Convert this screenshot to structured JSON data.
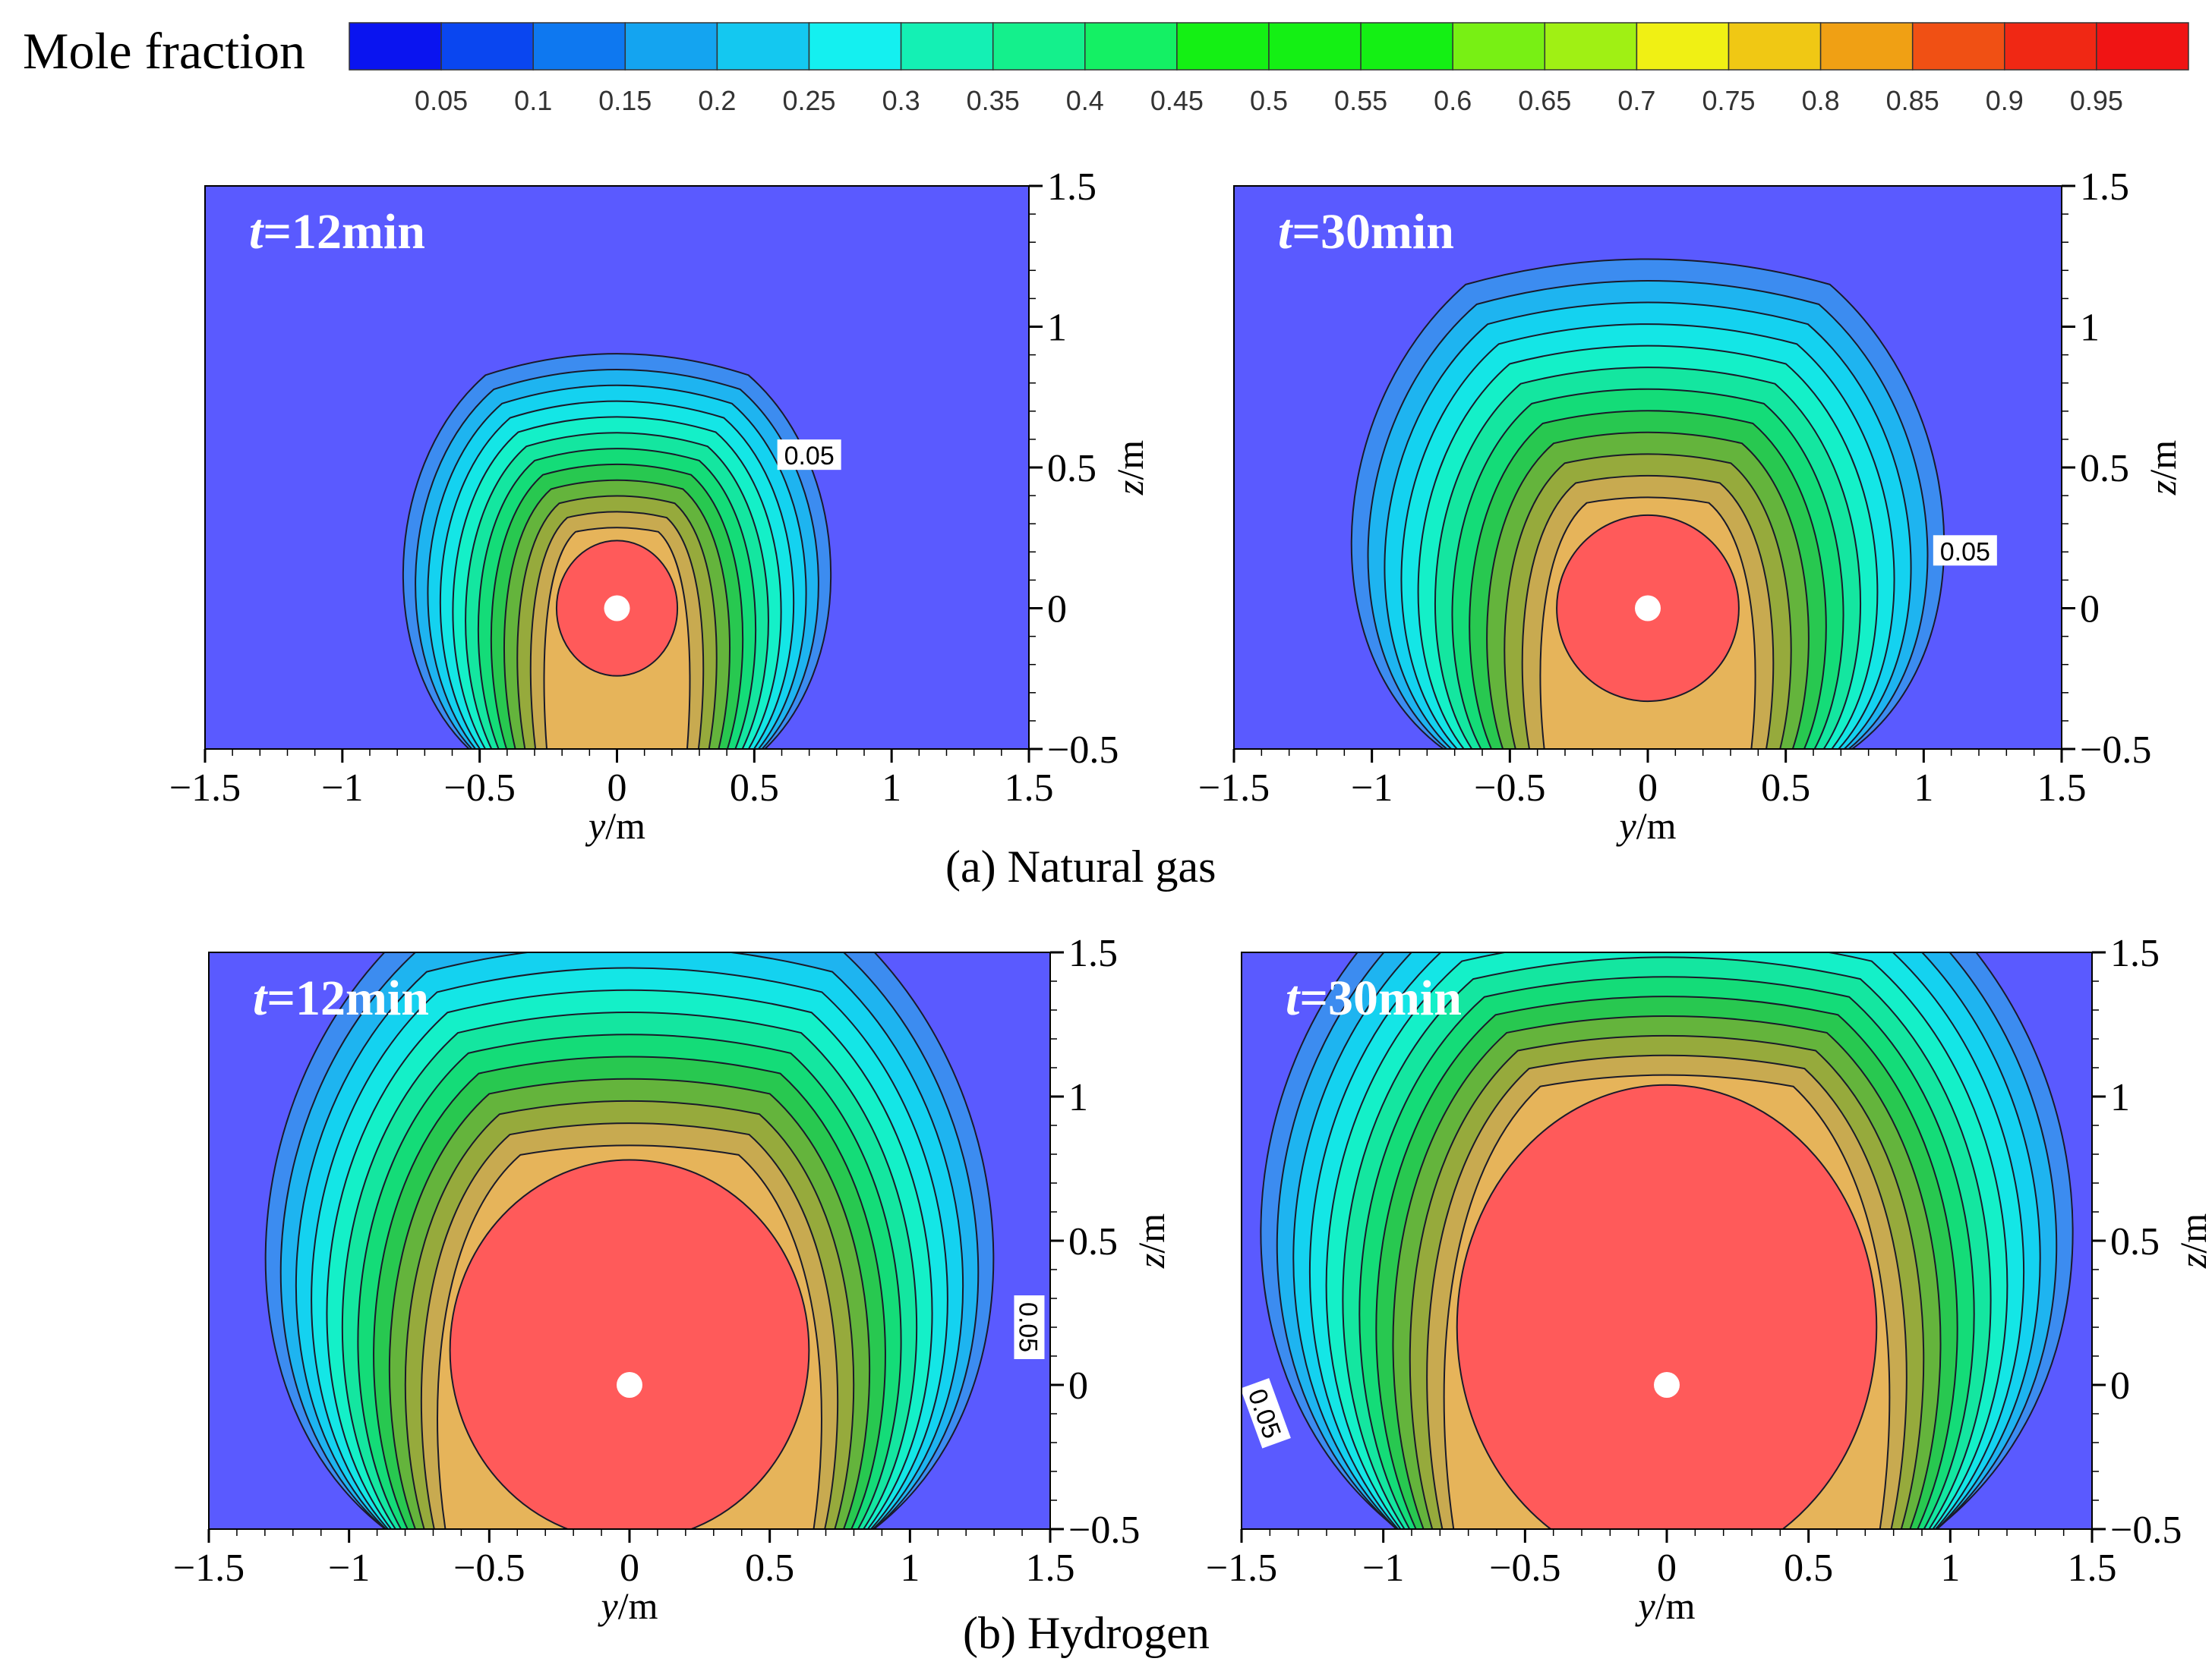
{
  "chart_data": [
    {
      "type": "heatmap",
      "group": "(a) Natural gas",
      "title": "t=12min",
      "title_var": "t",
      "title_rest": "=12min",
      "xlabel_var": "y",
      "xlabel_unit": "/m",
      "ylabel_var": "z",
      "ylabel_unit": "/m",
      "xlim": [
        -1.5,
        1.5
      ],
      "ylim": [
        -0.5,
        1.5
      ],
      "xticks": [
        "−1.5",
        "−1",
        "−0.5",
        "0",
        "0.5",
        "1",
        "1.5"
      ],
      "yticks": [
        "−0.5",
        "0",
        "0.5",
        "1",
        "1.5"
      ],
      "source": [
        0,
        0
      ],
      "core_radius_y": 0.22,
      "core_radius_z": 0.24,
      "core_center_z": 0.0,
      "outer_extent_y": 0.87,
      "outer_top_z": 0.9,
      "contour_tags": [
        {
          "text": "0.05",
          "y": 0.7,
          "z": 0.54,
          "rotate": 0
        }
      ]
    },
    {
      "type": "heatmap",
      "group": "(a) Natural gas",
      "title": "t=30min",
      "title_var": "t",
      "title_rest": "=30min",
      "xlabel_var": "y",
      "xlabel_unit": "/m",
      "ylabel_var": "z",
      "ylabel_unit": "/m",
      "xlim": [
        -1.5,
        1.5
      ],
      "ylim": [
        -0.5,
        1.5
      ],
      "xticks": [
        "−1.5",
        "−1",
        "−0.5",
        "0",
        "0.5",
        "1",
        "1.5"
      ],
      "yticks": [
        "−0.5",
        "0",
        "0.5",
        "1",
        "1.5"
      ],
      "source": [
        0,
        0
      ],
      "core_radius_y": 0.33,
      "core_radius_z": 0.33,
      "core_center_z": 0.0,
      "outer_extent_y": 1.2,
      "outer_top_z": 1.25,
      "contour_tags": [
        {
          "text": "0.05",
          "y": 1.15,
          "z": 0.2,
          "rotate": 0
        }
      ]
    },
    {
      "type": "heatmap",
      "group": "(b) Hydrogen",
      "title": "t=12min",
      "title_var": "t",
      "title_rest": "=12min",
      "xlabel_var": "y",
      "xlabel_unit": "/m",
      "ylabel_var": "z",
      "ylabel_unit": "/m",
      "xlim": [
        -1.5,
        1.5
      ],
      "ylim": [
        -0.5,
        1.5
      ],
      "xticks": [
        "−1.5",
        "−1",
        "−0.5",
        "0",
        "0.5",
        "1",
        "1.5"
      ],
      "yticks": [
        "−0.5",
        "0",
        "0.5",
        "1",
        "1.5"
      ],
      "source": [
        0,
        0
      ],
      "core_radius_y": 0.64,
      "core_radius_z": 0.66,
      "core_center_z": 0.12,
      "outer_extent_y": 1.45,
      "outer_top_z": 1.7,
      "contour_tags": [
        {
          "text": "0.05",
          "y": 1.42,
          "z": 0.2,
          "rotate": 90
        }
      ]
    },
    {
      "type": "heatmap",
      "group": "(b) Hydrogen",
      "title": "t=30min",
      "title_var": "t",
      "title_rest": "=30min",
      "xlabel_var": "y",
      "xlabel_unit": "/m",
      "ylabel_var": "z",
      "ylabel_unit": "/m",
      "xlim": [
        -1.5,
        1.5
      ],
      "ylim": [
        -0.5,
        1.5
      ],
      "xticks": [
        "−1.5",
        "−1",
        "−0.5",
        "0",
        "0.5",
        "1",
        "1.5"
      ],
      "yticks": [
        "−0.5",
        "0",
        "0.5",
        "1",
        "1.5"
      ],
      "source": [
        0,
        0
      ],
      "core_radius_y": 0.74,
      "core_radius_z": 0.84,
      "core_center_z": 0.2,
      "outer_extent_y": 1.6,
      "outer_top_z": 1.85,
      "contour_tags": [
        {
          "text": "0.05",
          "y": -1.42,
          "z": -0.1,
          "rotate": 70
        }
      ]
    }
  ],
  "colorbar": {
    "title": "Mole fraction",
    "levels": [
      "0.05",
      "0.1",
      "0.15",
      "0.2",
      "0.25",
      "0.3",
      "0.35",
      "0.4",
      "0.45",
      "0.5",
      "0.55",
      "0.6",
      "0.65",
      "0.7",
      "0.75",
      "0.8",
      "0.85",
      "0.9",
      "0.95"
    ],
    "colors": [
      "#0a14f0",
      "#0a46f0",
      "#0e78f0",
      "#14a4f0",
      "#14c8f0",
      "#14f0f0",
      "#14f0b4",
      "#14f08c",
      "#14f064",
      "#14f014",
      "#14f014",
      "#14f014",
      "#78f014",
      "#a0f014",
      "#f0f014",
      "#f0c814",
      "#f0a014",
      "#f05014",
      "#f02814",
      "#f01414"
    ]
  },
  "captions": {
    "a": "(a) Natural gas",
    "b": "(b) Hydrogen"
  },
  "palette": {
    "background": "#5a5aff",
    "levels": [
      "#5a5aff",
      "#3c8cf0",
      "#1eb4f0",
      "#14d2f0",
      "#14e6e6",
      "#14f0c8",
      "#14e6a0",
      "#14dc78",
      "#28c850",
      "#64b43c",
      "#96aa3c",
      "#c8aa50",
      "#e6b45a",
      "#ff5a5a"
    ]
  }
}
